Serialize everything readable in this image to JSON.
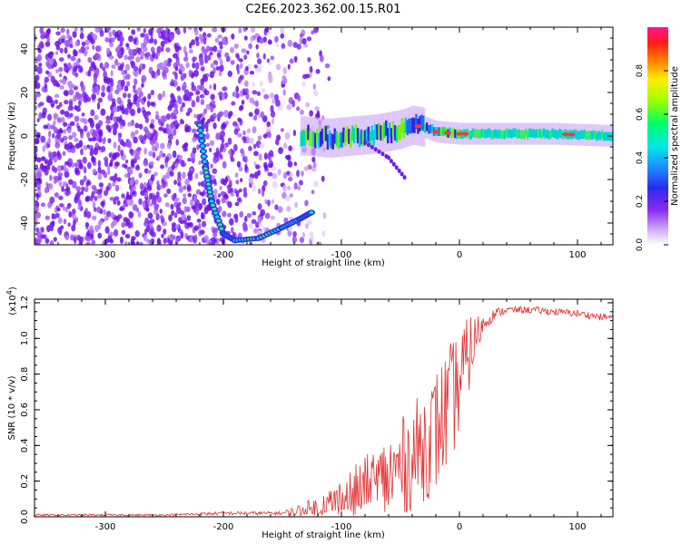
{
  "figure_title": "C2E6.2023.362.00.15.R01",
  "colors": {
    "accent": "#dd2b2b",
    "axis": "#000000"
  },
  "chart_data": [
    {
      "type": "heatmap",
      "title": "",
      "xlabel": "Height of straight line (km)",
      "ylabel": "Frequency (Hz)",
      "xlim": [
        -360,
        130
      ],
      "ylim": [
        -50,
        50
      ],
      "x_ticks": [
        -300,
        -200,
        -100,
        0,
        100
      ],
      "x_tick_labels": [
        "-300",
        "-200",
        "-100",
        "0",
        "100"
      ],
      "y_ticks": [
        40,
        20,
        0,
        -20,
        -40
      ],
      "y_tick_labels": [
        "40",
        "20",
        "0",
        "-20",
        "-40"
      ],
      "colorbar": {
        "label": "Normalized spectral amplitude",
        "range": [
          0,
          1
        ],
        "ticks": [
          0.0,
          0.2,
          0.4,
          0.6,
          0.8
        ],
        "tick_labels": [
          "0.0",
          "0.2",
          "0.4",
          "0.6",
          "0.8"
        ],
        "colormap": "rainbow-white-purple-blue-cyan-green-yellow-red-magenta"
      },
      "features": {
        "noise_region_x": [
          -360,
          -130
        ],
        "main_ridge": [
          {
            "x": -130,
            "y": 0
          },
          {
            "x": -110,
            "y": -1
          },
          {
            "x": -90,
            "y": 0
          },
          {
            "x": -70,
            "y": 1
          },
          {
            "x": -50,
            "y": 3
          },
          {
            "x": -40,
            "y": 5
          },
          {
            "x": -30,
            "y": 4
          },
          {
            "x": -20,
            "y": 2
          },
          {
            "x": 0,
            "y": 1
          },
          {
            "x": 40,
            "y": 1
          },
          {
            "x": 80,
            "y": 1
          },
          {
            "x": 130,
            "y": 0
          }
        ],
        "low_branch": [
          {
            "x": -220,
            "y": 5
          },
          {
            "x": -215,
            "y": -15
          },
          {
            "x": -210,
            "y": -30
          },
          {
            "x": -200,
            "y": -45
          },
          {
            "x": -190,
            "y": -48
          },
          {
            "x": -170,
            "y": -47
          },
          {
            "x": -150,
            "y": -42
          },
          {
            "x": -135,
            "y": -38
          },
          {
            "x": -125,
            "y": -35
          }
        ],
        "descending_branch": [
          {
            "x": -80,
            "y": -3
          },
          {
            "x": -60,
            "y": -10
          },
          {
            "x": -45,
            "y": -20
          }
        ]
      }
    },
    {
      "type": "line",
      "title": "",
      "xlabel": "Height of straight line (km)",
      "ylabel": "SNR (10 * v/v)",
      "y_scale_label": "(x10",
      "y_scale_exponent": "4",
      "y_scale_close": ")",
      "xlim": [
        -360,
        130
      ],
      "ylim": [
        0,
        1.22
      ],
      "x_ticks": [
        -300,
        -200,
        -100,
        0,
        100
      ],
      "x_tick_labels": [
        "-300",
        "-200",
        "-100",
        "0",
        "100"
      ],
      "y_ticks": [
        0.0,
        0.2,
        0.4,
        0.6,
        0.8,
        1.0,
        1.2
      ],
      "y_tick_labels": [
        "0.0",
        "0.2",
        "0.4",
        "0.6",
        "0.8",
        "1.0",
        "1.2"
      ],
      "series": [
        {
          "name": "SNR",
          "color": "#e03030",
          "x": [
            -360,
            -300,
            -250,
            -200,
            -150,
            -120,
            -100,
            -80,
            -60,
            -40,
            -20,
            -10,
            0,
            10,
            20,
            30,
            40,
            60,
            80,
            100,
            120,
            130
          ],
          "values": [
            0.01,
            0.01,
            0.01,
            0.02,
            0.02,
            0.04,
            0.08,
            0.14,
            0.22,
            0.33,
            0.48,
            0.6,
            0.75,
            0.95,
            1.08,
            1.14,
            1.16,
            1.16,
            1.15,
            1.14,
            1.12,
            1.12
          ],
          "noise_amplitude": [
            0.005,
            0.005,
            0.005,
            0.01,
            0.01,
            0.08,
            0.15,
            0.2,
            0.25,
            0.3,
            0.35,
            0.35,
            0.3,
            0.2,
            0.05,
            0.03,
            0.02,
            0.02,
            0.02,
            0.02,
            0.02,
            0.02
          ]
        }
      ]
    }
  ]
}
